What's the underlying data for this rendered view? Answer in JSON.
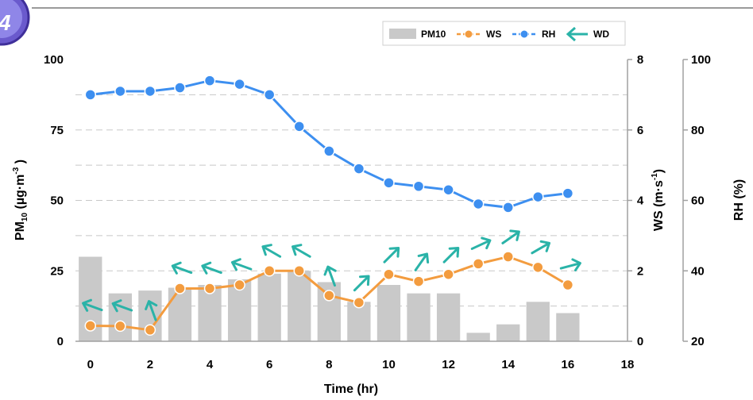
{
  "chart_data": {
    "type": "bar+line",
    "xlabel": "Time (hr)",
    "x_ticks": [
      "0",
      "2",
      "4",
      "6",
      "8",
      "10",
      "12",
      "14",
      "16",
      "18"
    ],
    "xlim": [
      -0.5,
      18
    ],
    "x": [
      0,
      1,
      2,
      3,
      4,
      5,
      6,
      7,
      8,
      9,
      10,
      11,
      12,
      13,
      14,
      15,
      16
    ],
    "left_axis": {
      "label_main": "PM",
      "label_sub": "10",
      "label_unit": " (µg·m",
      "label_sup": "-3",
      "label_close": " )",
      "ylim": [
        0,
        100
      ],
      "ticks": [
        "0",
        "25",
        "50",
        "75",
        "100"
      ]
    },
    "ws_axis": {
      "label_main": "WS (m·s",
      "label_sup": "-1",
      "label_close": ")",
      "ylim": [
        0,
        8
      ],
      "ticks": [
        "0",
        "2",
        "4",
        "6",
        "8"
      ]
    },
    "rh_axis": {
      "label": "RH (%)",
      "ylim": [
        20,
        100
      ],
      "ticks": [
        "20",
        "40",
        "60",
        "80",
        "100"
      ]
    },
    "series": [
      {
        "name": "PM10",
        "kind": "bar",
        "axis": "left",
        "color": "#c9c9c9",
        "values": [
          30,
          17,
          18,
          19,
          20,
          22,
          24,
          25,
          21,
          14,
          20,
          17,
          17,
          3,
          6,
          14,
          10
        ]
      },
      {
        "name": "WS",
        "kind": "line",
        "axis": "ws",
        "color": "#f39c3f",
        "values": [
          0.44,
          0.43,
          0.32,
          1.5,
          1.5,
          1.6,
          2.0,
          2.0,
          1.3,
          1.1,
          1.9,
          1.7,
          1.9,
          2.2,
          2.4,
          2.1,
          1.6
        ]
      },
      {
        "name": "RH",
        "kind": "line",
        "axis": "rh",
        "color": "#3d8ff0",
        "values": [
          90,
          91,
          91,
          92,
          94,
          93,
          90,
          81,
          74,
          69,
          65,
          64,
          63,
          59,
          58,
          61,
          62
        ]
      },
      {
        "name": "WD",
        "kind": "arrow",
        "color": "#2ab3a8",
        "angles_deg": [
          200,
          200,
          250,
          200,
          200,
          200,
          210,
          210,
          250,
          315,
          315,
          305,
          315,
          335,
          325,
          330,
          345
        ]
      }
    ],
    "legend_position": "top-right",
    "grid": "dashed horizontal"
  }
}
